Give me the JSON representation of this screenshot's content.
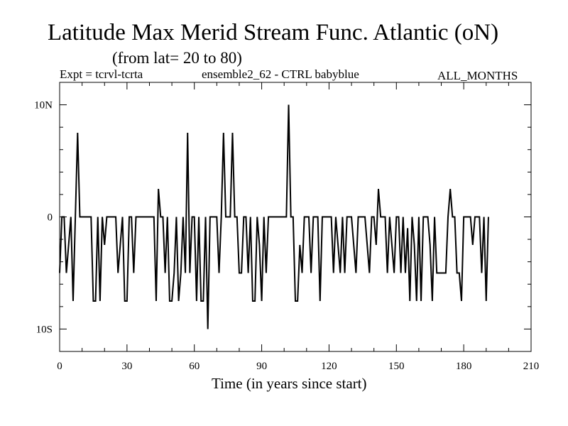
{
  "chart_data": {
    "type": "line",
    "title": "Latitude Max Merid Stream Func. Atlantic (oN)",
    "subtitle": "(from lat= 20 to 80)",
    "experiment": "Expt = tcrvl-tcrta",
    "ensemble": "ensemble2_62 - CTRL babyblue",
    "months": "ALL_MONTHS",
    "xlabel": "Time (in years since start)",
    "ylabel": "",
    "xlim": [
      0,
      210
    ],
    "ylim": [
      -12,
      12
    ],
    "xticks": [
      0,
      30,
      60,
      90,
      120,
      150,
      180,
      210
    ],
    "xtick_labels": [
      "0",
      "30",
      "60",
      "90",
      "120",
      "150",
      "180",
      "210"
    ],
    "yticks": [
      10,
      0,
      -10
    ],
    "ytick_labels": [
      "10N",
      "0",
      "10S"
    ],
    "grid": false,
    "series": [
      {
        "color": "#000000",
        "points": [
          [
            0,
            -5
          ],
          [
            1,
            0
          ],
          [
            2,
            0
          ],
          [
            3,
            -5
          ],
          [
            4,
            -2.5
          ],
          [
            5,
            0
          ],
          [
            6,
            -7.5
          ],
          [
            7,
            0
          ],
          [
            8,
            7.5
          ],
          [
            9,
            0
          ],
          [
            10,
            0
          ],
          [
            11,
            0
          ],
          [
            12,
            0
          ],
          [
            13,
            0
          ],
          [
            14,
            0
          ],
          [
            15,
            -7.5
          ],
          [
            16,
            -7.5
          ],
          [
            17,
            0
          ],
          [
            18,
            -7.5
          ],
          [
            19,
            0
          ],
          [
            20,
            -2.5
          ],
          [
            21,
            0
          ],
          [
            22,
            0
          ],
          [
            23,
            0
          ],
          [
            24,
            0
          ],
          [
            25,
            0
          ],
          [
            26,
            -5
          ],
          [
            27,
            -2.5
          ],
          [
            28,
            0
          ],
          [
            29,
            -7.5
          ],
          [
            30,
            -7.5
          ],
          [
            31,
            0
          ],
          [
            32,
            0
          ],
          [
            33,
            -5
          ],
          [
            34,
            0
          ],
          [
            35,
            0
          ],
          [
            36,
            0
          ],
          [
            37,
            0
          ],
          [
            38,
            0
          ],
          [
            39,
            0
          ],
          [
            40,
            0
          ],
          [
            41,
            0
          ],
          [
            42,
            0
          ],
          [
            43,
            -7.5
          ],
          [
            44,
            2.5
          ],
          [
            45,
            0
          ],
          [
            46,
            0
          ],
          [
            47,
            -5
          ],
          [
            48,
            0
          ],
          [
            49,
            -7.5
          ],
          [
            50,
            -7.5
          ],
          [
            51,
            -5
          ],
          [
            52,
            0
          ],
          [
            53,
            -7.5
          ],
          [
            54,
            -5
          ],
          [
            55,
            0
          ],
          [
            56,
            -5
          ],
          [
            57,
            7.5
          ],
          [
            58,
            -5
          ],
          [
            59,
            0
          ],
          [
            60,
            0
          ],
          [
            61,
            -7.5
          ],
          [
            62,
            0
          ],
          [
            63,
            -7.5
          ],
          [
            64,
            -7.5
          ],
          [
            65,
            0
          ],
          [
            66,
            -10
          ],
          [
            67,
            0
          ],
          [
            68,
            0
          ],
          [
            69,
            0
          ],
          [
            70,
            0
          ],
          [
            71,
            -5
          ],
          [
            72,
            0
          ],
          [
            73,
            7.5
          ],
          [
            74,
            0
          ],
          [
            75,
            0
          ],
          [
            76,
            0
          ],
          [
            77,
            7.5
          ],
          [
            78,
            0
          ],
          [
            79,
            0
          ],
          [
            80,
            -5
          ],
          [
            81,
            -5
          ],
          [
            82,
            0
          ],
          [
            83,
            0
          ],
          [
            84,
            -5
          ],
          [
            85,
            0
          ],
          [
            86,
            -7.5
          ],
          [
            87,
            -7.5
          ],
          [
            88,
            0
          ],
          [
            89,
            -2.5
          ],
          [
            90,
            -7.5
          ],
          [
            91,
            0
          ],
          [
            92,
            -5
          ],
          [
            93,
            0
          ],
          [
            94,
            0
          ],
          [
            95,
            0
          ],
          [
            96,
            0
          ],
          [
            97,
            0
          ],
          [
            98,
            0
          ],
          [
            99,
            0
          ],
          [
            100,
            0
          ],
          [
            101,
            0
          ],
          [
            102,
            10
          ],
          [
            103,
            0
          ],
          [
            104,
            0
          ],
          [
            105,
            -7.5
          ],
          [
            106,
            -7.5
          ],
          [
            107,
            -2.5
          ],
          [
            108,
            -5
          ],
          [
            109,
            0
          ],
          [
            110,
            0
          ],
          [
            111,
            0
          ],
          [
            112,
            -5
          ],
          [
            113,
            0
          ],
          [
            114,
            0
          ],
          [
            115,
            0
          ],
          [
            116,
            -7.5
          ],
          [
            117,
            0
          ],
          [
            118,
            0
          ],
          [
            119,
            0
          ],
          [
            120,
            0
          ],
          [
            121,
            0
          ],
          [
            122,
            -5
          ],
          [
            123,
            0
          ],
          [
            124,
            -2.5
          ],
          [
            125,
            -5
          ],
          [
            126,
            0
          ],
          [
            127,
            -5
          ],
          [
            128,
            0
          ],
          [
            129,
            0
          ],
          [
            130,
            0
          ],
          [
            131,
            -2.5
          ],
          [
            132,
            -5
          ],
          [
            133,
            0
          ],
          [
            134,
            0
          ],
          [
            135,
            0
          ],
          [
            136,
            0
          ],
          [
            137,
            -2.5
          ],
          [
            138,
            -5
          ],
          [
            139,
            0
          ],
          [
            140,
            0
          ],
          [
            141,
            -2.5
          ],
          [
            142,
            2.5
          ],
          [
            143,
            0
          ],
          [
            144,
            0
          ],
          [
            145,
            0
          ],
          [
            146,
            -5
          ],
          [
            147,
            0
          ],
          [
            148,
            -2.5
          ],
          [
            149,
            -5
          ],
          [
            150,
            0
          ],
          [
            151,
            0
          ],
          [
            152,
            -5
          ],
          [
            153,
            0
          ],
          [
            154,
            -5
          ],
          [
            155,
            -1
          ],
          [
            156,
            -7.5
          ],
          [
            157,
            0
          ],
          [
            158,
            -2.5
          ],
          [
            159,
            -7.5
          ],
          [
            160,
            0
          ],
          [
            161,
            -7.5
          ],
          [
            162,
            0
          ],
          [
            163,
            0
          ],
          [
            164,
            0
          ],
          [
            165,
            -2.5
          ],
          [
            166,
            -7.5
          ],
          [
            167,
            0
          ],
          [
            168,
            -5
          ],
          [
            169,
            -5
          ],
          [
            170,
            -5
          ],
          [
            171,
            -5
          ],
          [
            172,
            -5
          ],
          [
            173,
            0
          ],
          [
            174,
            2.5
          ],
          [
            175,
            0
          ],
          [
            176,
            0
          ],
          [
            177,
            -5
          ],
          [
            178,
            -5
          ],
          [
            179,
            -7.5
          ],
          [
            180,
            0
          ],
          [
            181,
            0
          ],
          [
            182,
            0
          ],
          [
            183,
            0
          ],
          [
            184,
            -2.5
          ],
          [
            185,
            0
          ],
          [
            186,
            0
          ],
          [
            187,
            0
          ],
          [
            188,
            -5
          ],
          [
            189,
            0
          ],
          [
            190,
            -7.5
          ],
          [
            191,
            0
          ]
        ]
      }
    ]
  }
}
